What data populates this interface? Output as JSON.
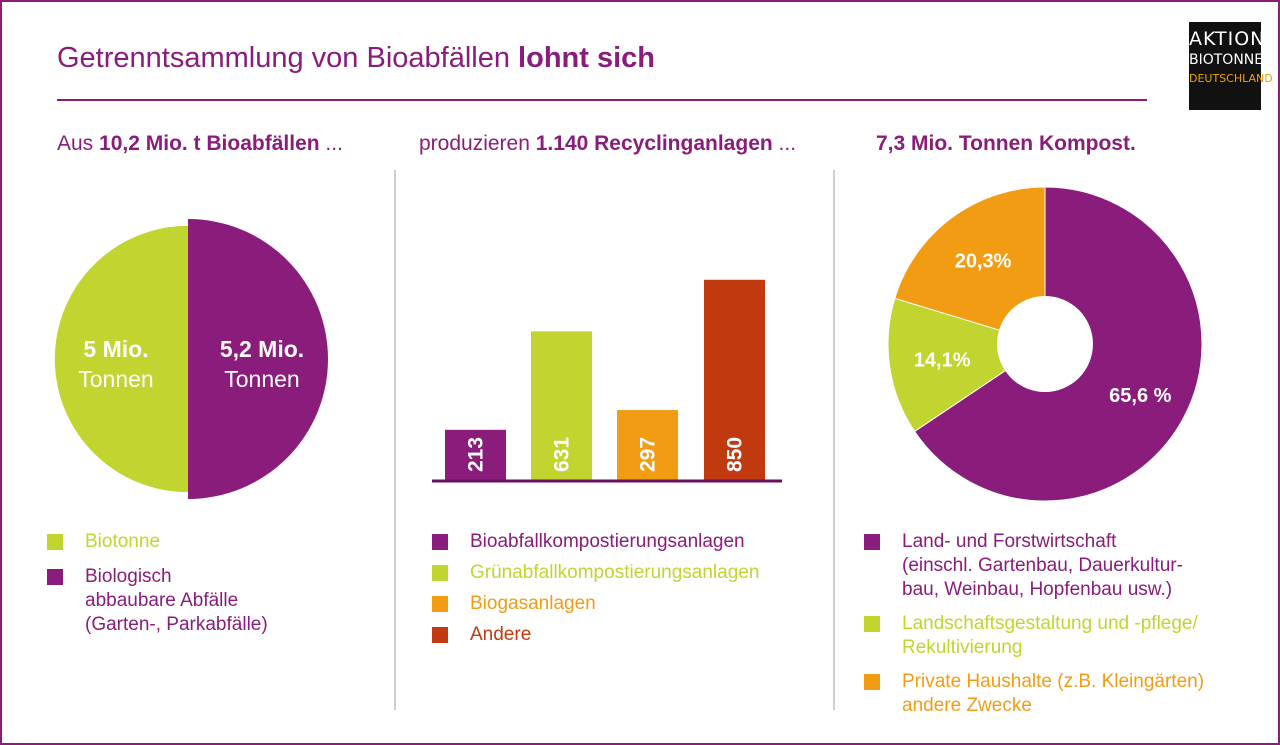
{
  "title": {
    "regular": "Getrenntsammlung von Bioabfällen",
    "bold": "lohnt sich"
  },
  "logo": {
    "line1": "AKTION",
    "line2": "BIOTONNE",
    "line3": "DEUTSCHLAND"
  },
  "colors": {
    "purple": "#8a1c7c",
    "lime": "#c1d42f",
    "orange": "#f29c13",
    "red": "#c0390f"
  },
  "panel1": {
    "heading_pre": "Aus ",
    "heading_bold": "10,2 Mio. t Bioabfällen",
    "heading_post": " ...",
    "legend": [
      {
        "color": "#c1d42f",
        "lines": [
          "Biotonne"
        ]
      },
      {
        "color": "#8a1c7c",
        "lines": [
          "Biologisch",
          "abbaubare Abfälle",
          "(Garten-, Parkabfälle)"
        ]
      }
    ]
  },
  "panel2": {
    "heading_pre": "produzieren ",
    "heading_bold": "1.140 Recyclinganlagen",
    "heading_post": " ...",
    "legend": [
      {
        "color": "#8a1c7c",
        "lines": [
          "Bioabfallkompostierungsanlagen"
        ]
      },
      {
        "color": "#c1d42f",
        "lines": [
          "Grünabfallkompostierungsanlagen"
        ]
      },
      {
        "color": "#f29c13",
        "lines": [
          "Biogasanlagen"
        ]
      },
      {
        "color": "#c0390f",
        "lines": [
          "Andere"
        ]
      }
    ]
  },
  "panel3": {
    "heading_bold": "7,3 Mio. Tonnen Kompost.",
    "legend": [
      {
        "color": "#8a1c7c",
        "lines": [
          "Land- und Forstwirtschaft",
          "(einschl. Gartenbau, Dauerkultur-",
          "bau, Weinbau, Hopfenbau usw.)"
        ]
      },
      {
        "color": "#c1d42f",
        "lines": [
          "Landschaftsgestaltung und -pflege/",
          "Rekultivierung"
        ]
      },
      {
        "color": "#f29c13",
        "lines": [
          "Private Haushalte (z.B. Kleingärten)",
          "andere Zwecke"
        ]
      }
    ]
  },
  "chart_data": [
    {
      "type": "pie",
      "slices": [
        {
          "name": "Biotonne",
          "value": 5.0,
          "label_lines": [
            "5 Mio.",
            "Tonnen"
          ],
          "color": "#c1d42f"
        },
        {
          "name": "Biologisch abbaubare Abfälle (Garten-, Parkabfälle)",
          "value": 5.2,
          "label_lines": [
            "5,2 Mio.",
            "Tonnen"
          ],
          "color": "#8a1c7c"
        }
      ]
    },
    {
      "type": "bar",
      "categories": [
        "Bioabfallkompostierungsanlagen",
        "Grünabfallkompostierungsanlagen",
        "Biogasanlagen",
        "Andere"
      ],
      "values": [
        213,
        631,
        297,
        850
      ],
      "labels": [
        "213",
        "631",
        "297",
        "850"
      ],
      "colors": [
        "#8a1c7c",
        "#c1d42f",
        "#f29c13",
        "#c0390f"
      ],
      "ylim": [
        0,
        900
      ]
    },
    {
      "type": "pie",
      "donut": true,
      "slices": [
        {
          "name": "Land- und Forstwirtschaft",
          "value": 65.6,
          "label": "65,6 %",
          "color": "#8a1c7c"
        },
        {
          "name": "Landschaftsgestaltung und -pflege/Rekultivierung",
          "value": 14.1,
          "label": "14,1%",
          "color": "#c1d42f"
        },
        {
          "name": "Private Haushalte (z.B. Kleingärten) andere Zwecke",
          "value": 20.3,
          "label": "20,3%",
          "color": "#f29c13"
        }
      ]
    }
  ]
}
